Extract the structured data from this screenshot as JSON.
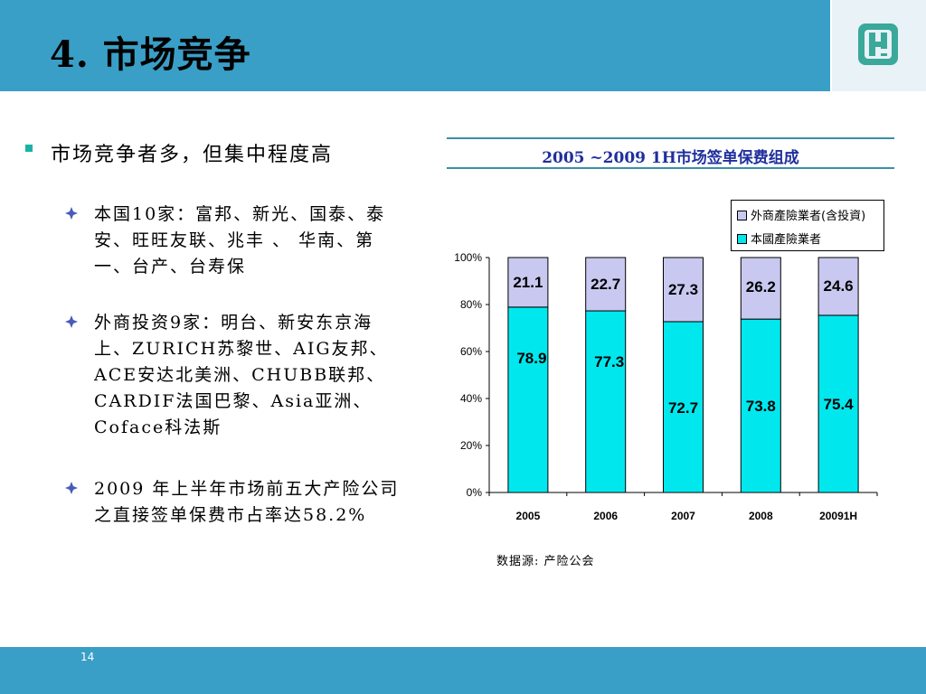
{
  "slide": {
    "title": "4. 市场竞争",
    "page_number": "14"
  },
  "left": {
    "main_bullet": "市场竞争者多，但集中程度高",
    "sub_bullets": [
      "本国10家：富邦、新光、国泰、泰安、旺旺友联、兆丰 、 华南、第一、台产、台寿保",
      "外商投资9家：明台、新安东京海上、ZURICH苏黎世、AIG友邦、ACE安达北美洲、CHUBB联邦、CARDIF法国巴黎、Asia亚洲、Coface科法斯",
      "2009 年上半年市场前五大产险公司之直接签单保费市占率达58.2%"
    ]
  },
  "source_note": "数据源: 产险公会",
  "colors": {
    "header": "#3a9fc6",
    "domestic": "#00e8ee",
    "foreign": "#c8c8f0",
    "chart_title": "#1f2f9e",
    "bullet_square": "#19b3a6"
  },
  "chart_data": {
    "type": "bar",
    "stacked": true,
    "title": "2005 ~2009 1H市场签单保费组成",
    "categories": [
      "2005",
      "2006",
      "2007",
      "2008",
      "20091H"
    ],
    "series": [
      {
        "name": "本國產險業者",
        "values": [
          78.9,
          77.3,
          72.7,
          73.8,
          75.4
        ]
      },
      {
        "name": "外商產險業者(含投資)",
        "values": [
          21.1,
          22.7,
          27.3,
          26.2,
          24.6
        ]
      }
    ],
    "ylim": [
      0,
      100
    ],
    "yticks": [
      "0%",
      "20%",
      "40%",
      "60%",
      "80%",
      "100%"
    ],
    "legend_position": "top-right",
    "grid": false
  }
}
